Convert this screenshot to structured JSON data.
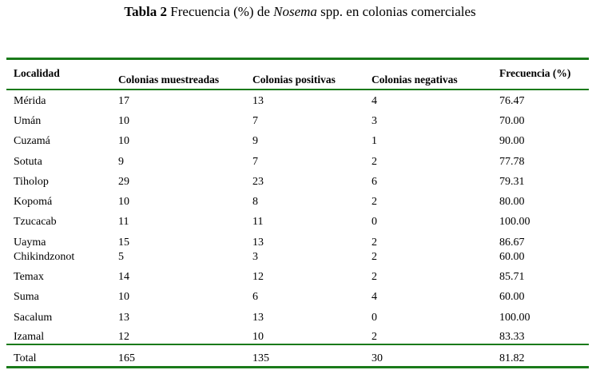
{
  "caption": {
    "label": "Tabla 2",
    "text_before": " Frecuencia (%) de ",
    "italic": "Nosema",
    "text_after": " spp. en colonias comerciales"
  },
  "headers": [
    "Localidad",
    "Colonias muestreadas",
    "Colonias positivas",
    "Colonias negativas",
    "Frecuencia (%)"
  ],
  "rows": [
    [
      "Mérida",
      "17",
      "13",
      "4",
      "76.47"
    ],
    [
      "Umán",
      "10",
      "7",
      "3",
      "70.00"
    ],
    [
      "Cuzamá",
      "10",
      "9",
      "1",
      "90.00"
    ],
    [
      "Sotuta",
      "9",
      "7",
      "2",
      "77.78"
    ],
    [
      "Tiholop",
      "29",
      "23",
      "6",
      "79.31"
    ],
    [
      "Kopomá",
      "10",
      "8",
      "2",
      "80.00"
    ],
    [
      "Tzucacab",
      "11",
      "11",
      "0",
      "100.00"
    ],
    [
      "Uayma",
      "15",
      "13",
      "2",
      "86.67"
    ],
    [
      "Chikindzonot",
      "5",
      "3",
      "2",
      "60.00"
    ],
    [
      "Temax",
      "14",
      "12",
      "2",
      "85.71"
    ],
    [
      "Suma",
      "10",
      "6",
      "4",
      "60.00"
    ],
    [
      "Sacalum",
      "13",
      "13",
      "0",
      "100.00"
    ],
    [
      "Izamal",
      "12",
      "10",
      "2",
      "83.33"
    ]
  ],
  "total": [
    "Total",
    "165",
    "135",
    "30",
    "81.82"
  ]
}
